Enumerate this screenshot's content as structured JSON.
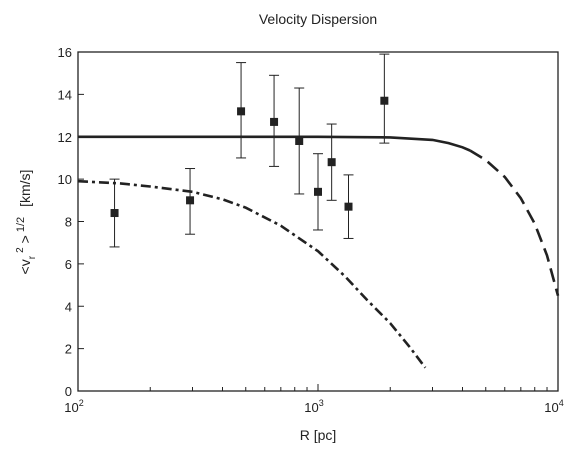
{
  "chart_data": {
    "type": "scatter",
    "title": "Velocity Dispersion",
    "xlabel": "R [pc]",
    "ylabel": "<v_r^2>^1/2 [km/s]",
    "ylabel_parts": {
      "open": "<v",
      "sub": "r",
      "sup2": "2",
      "close": ">",
      "sup_half": "1/2",
      "units": "[km/s]"
    },
    "x_scale": "log",
    "xlim": [
      100,
      10000
    ],
    "ylim": [
      0,
      16
    ],
    "grid": false,
    "x_ticks": [
      {
        "value": 100,
        "base": "10",
        "exp": "2"
      },
      {
        "value": 1000,
        "base": "10",
        "exp": "3"
      },
      {
        "value": 10000,
        "base": "10",
        "exp": "4"
      }
    ],
    "y_ticks": [
      {
        "value": 0,
        "label": "0"
      },
      {
        "value": 2,
        "label": "2"
      },
      {
        "value": 4,
        "label": "4"
      },
      {
        "value": 6,
        "label": "6"
      },
      {
        "value": 8,
        "label": "8"
      },
      {
        "value": 10,
        "label": "10"
      },
      {
        "value": 12,
        "label": "12"
      },
      {
        "value": 14,
        "label": "14"
      },
      {
        "value": 16,
        "label": "16"
      }
    ],
    "points": [
      {
        "x": 142,
        "y": 8.4,
        "yerr_low": 6.8,
        "yerr_high": 10.0
      },
      {
        "x": 293,
        "y": 9.0,
        "yerr_low": 7.4,
        "yerr_high": 10.5
      },
      {
        "x": 478,
        "y": 13.2,
        "yerr_low": 11.0,
        "yerr_high": 15.5
      },
      {
        "x": 656,
        "y": 12.7,
        "yerr_low": 10.6,
        "yerr_high": 14.9
      },
      {
        "x": 835,
        "y": 11.8,
        "yerr_low": 9.3,
        "yerr_high": 14.3
      },
      {
        "x": 1000,
        "y": 9.4,
        "yerr_low": 7.6,
        "yerr_high": 11.2
      },
      {
        "x": 1140,
        "y": 10.8,
        "yerr_low": 9.0,
        "yerr_high": 12.6
      },
      {
        "x": 1340,
        "y": 8.7,
        "yerr_low": 7.2,
        "yerr_high": 10.2
      },
      {
        "x": 1890,
        "y": 13.7,
        "yerr_low": 11.7,
        "yerr_high": 15.9
      }
    ],
    "curves": [
      {
        "style": "solid",
        "color": "#222222",
        "points": [
          [
            100,
            12.0
          ],
          [
            500,
            12.0
          ],
          [
            1000,
            12.0
          ],
          [
            2000,
            11.97
          ],
          [
            3000,
            11.85
          ],
          [
            3500,
            11.7
          ],
          [
            4000,
            11.5
          ],
          [
            4300,
            11.35
          ]
        ]
      },
      {
        "style": "dashed",
        "color": "#222222",
        "points": [
          [
            4300,
            11.35
          ],
          [
            5000,
            10.9
          ],
          [
            6000,
            10.1
          ],
          [
            7000,
            9.1
          ],
          [
            8000,
            7.9
          ],
          [
            9000,
            6.4
          ],
          [
            10000,
            4.5
          ]
        ]
      },
      {
        "style": "dashdot",
        "color": "#222222",
        "points": [
          [
            100,
            9.9
          ],
          [
            150,
            9.8
          ],
          [
            200,
            9.65
          ],
          [
            300,
            9.4
          ],
          [
            400,
            9.05
          ],
          [
            500,
            8.65
          ],
          [
            700,
            7.8
          ],
          [
            1000,
            6.6
          ],
          [
            1300,
            5.4
          ],
          [
            1600,
            4.3
          ],
          [
            2000,
            3.2
          ],
          [
            2400,
            2.1
          ],
          [
            2800,
            1.1
          ]
        ]
      }
    ]
  }
}
